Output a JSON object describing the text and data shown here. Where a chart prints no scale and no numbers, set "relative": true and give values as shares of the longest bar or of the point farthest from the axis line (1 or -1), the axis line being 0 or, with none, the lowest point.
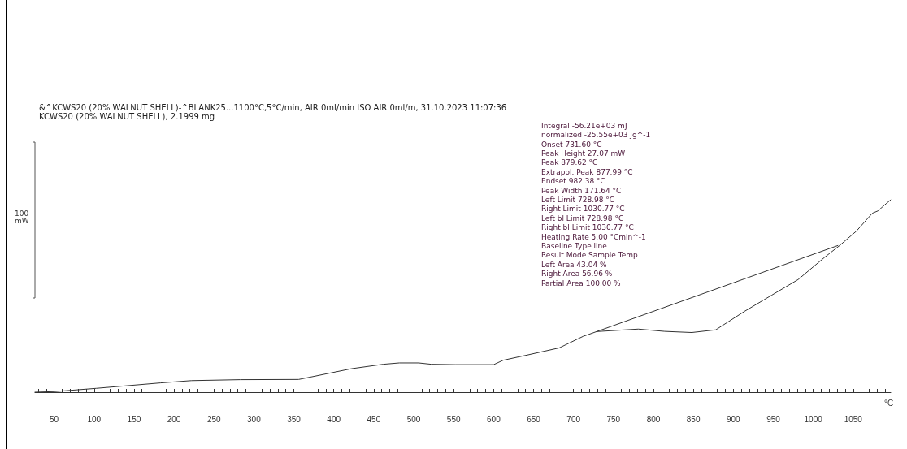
{
  "chart_data": {
    "type": "line",
    "relative": true,
    "title": "&^KCWS20 (20% WALNUT SHELL)-^BLANK25...1100°C,5°C/min, AIR 0ml/min ISO AIR 0ml/m, 31.10.2023 11:07:36",
    "subtitle": "KCWS20 (20% WALNUT SHELL), 2.1999 mg",
    "xlabel": "°C",
    "xlim": [
      26,
      1097
    ],
    "xticks": [
      {
        "value": 30,
        "label": null
      },
      {
        "value": 40,
        "label": null
      },
      50,
      {
        "value": 60,
        "label": null
      },
      {
        "value": 70,
        "label": null
      },
      {
        "value": 80,
        "label": null
      },
      {
        "value": 90,
        "label": null
      },
      100,
      {
        "value": 110,
        "label": null
      },
      {
        "value": 120,
        "label": null
      },
      {
        "value": 130,
        "label": null
      },
      {
        "value": 140,
        "label": null
      },
      150,
      {
        "value": 160,
        "label": null
      },
      {
        "value": 170,
        "label": null
      },
      {
        "value": 180,
        "label": null
      },
      {
        "value": 190,
        "label": null
      },
      200,
      {
        "value": 210,
        "label": null
      },
      {
        "value": 220,
        "label": null
      },
      {
        "value": 230,
        "label": null
      },
      {
        "value": 240,
        "label": null
      },
      250,
      {
        "value": 260,
        "label": null
      },
      {
        "value": 270,
        "label": null
      },
      {
        "value": 280,
        "label": null
      },
      {
        "value": 290,
        "label": null
      },
      300,
      {
        "value": 310,
        "label": null
      },
      {
        "value": 320,
        "label": null
      },
      {
        "value": 330,
        "label": null
      },
      {
        "value": 340,
        "label": null
      },
      350,
      {
        "value": 360,
        "label": null
      },
      {
        "value": 370,
        "label": null
      },
      {
        "value": 380,
        "label": null
      },
      {
        "value": 390,
        "label": null
      },
      400,
      {
        "value": 410,
        "label": null
      },
      {
        "value": 420,
        "label": null
      },
      {
        "value": 430,
        "label": null
      },
      {
        "value": 440,
        "label": null
      },
      450,
      {
        "value": 460,
        "label": null
      },
      {
        "value": 470,
        "label": null
      },
      {
        "value": 480,
        "label": null
      },
      {
        "value": 490,
        "label": null
      },
      500,
      {
        "value": 510,
        "label": null
      },
      {
        "value": 520,
        "label": null
      },
      {
        "value": 530,
        "label": null
      },
      {
        "value": 540,
        "label": null
      },
      550,
      {
        "value": 560,
        "label": null
      },
      {
        "value": 570,
        "label": null
      },
      {
        "value": 580,
        "label": null
      },
      {
        "value": 590,
        "label": null
      },
      600,
      {
        "value": 610,
        "label": null
      },
      {
        "value": 620,
        "label": null
      },
      {
        "value": 630,
        "label": null
      },
      {
        "value": 640,
        "label": null
      },
      650,
      {
        "value": 660,
        "label": null
      },
      {
        "value": 670,
        "label": null
      },
      {
        "value": 680,
        "label": null
      },
      {
        "value": 690,
        "label": null
      },
      700,
      {
        "value": 710,
        "label": null
      },
      {
        "value": 720,
        "label": null
      },
      {
        "value": 730,
        "label": null
      },
      {
        "value": 740,
        "label": null
      },
      750,
      {
        "value": 760,
        "label": null
      },
      {
        "value": 770,
        "label": null
      },
      {
        "value": 780,
        "label": null
      },
      {
        "value": 790,
        "label": null
      },
      800,
      {
        "value": 810,
        "label": null
      },
      {
        "value": 820,
        "label": null
      },
      {
        "value": 830,
        "label": null
      },
      {
        "value": 840,
        "label": null
      },
      850,
      {
        "value": 860,
        "label": null
      },
      {
        "value": 870,
        "label": null
      },
      {
        "value": 880,
        "label": null
      },
      {
        "value": 890,
        "label": null
      },
      900,
      {
        "value": 910,
        "label": null
      },
      {
        "value": 920,
        "label": null
      },
      {
        "value": 930,
        "label": null
      },
      {
        "value": 940,
        "label": null
      },
      950,
      {
        "value": 960,
        "label": null
      },
      {
        "value": 970,
        "label": null
      },
      {
        "value": 980,
        "label": null
      },
      {
        "value": 990,
        "label": null
      },
      1000,
      {
        "value": 1010,
        "label": null
      },
      {
        "value": 1020,
        "label": null
      },
      {
        "value": 1030,
        "label": null
      },
      {
        "value": 1040,
        "label": null
      },
      1050,
      {
        "value": 1060,
        "label": null
      },
      {
        "value": 1070,
        "label": null
      },
      {
        "value": 1080,
        "label": null
      },
      {
        "value": 1090,
        "label": null
      }
    ],
    "tick_labels": "x",
    "grid": false,
    "marker": "none",
    "line_style": "solid",
    "series": [
      {
        "color": "#333333",
        "x": [
          26,
          50,
          103,
          183,
          222,
          283,
          356,
          382,
          422,
          462,
          482,
          506,
          522,
          552,
          600,
          612,
          642,
          682,
          712,
          729,
          781,
          814,
          848,
          878,
          914,
          948,
          981,
          1014,
          1033,
          1054,
          1074,
          1081,
          1091,
          1096,
          1097
        ],
        "values": [
          0,
          0.003,
          0.02,
          0.048,
          0.06,
          0.065,
          0.066,
          0.088,
          0.122,
          0.145,
          0.152,
          0.152,
          0.145,
          0.143,
          0.143,
          0.166,
          0.193,
          0.23,
          0.29,
          0.315,
          0.328,
          0.316,
          0.31,
          0.324,
          0.42,
          0.504,
          0.585,
          0.7,
          0.762,
          0.837,
          0.93,
          0.942,
          0.979,
          0.996,
          1
        ]
      },
      {
        "color": "#333333",
        "x": [
          728.98,
          1030.77
        ],
        "values": [
          0.315,
          0.762
        ]
      }
    ],
    "annotations": [
      "100\nmW",
      "Integral -56.21e+03 mJ",
      "normalized -25.55e+03 Jg^-1",
      "Onset 731.60 °C",
      "Peak Height 27.07 mW",
      "Peak 879.62 °C",
      "Extrapol. Peak 877.99 °C",
      "Endset 982.38 °C",
      "Peak Width 171.64 °C",
      "Left Limit 728.98 °C",
      "Right Limit 1030.77 °C",
      "Left bl Limit 728.98 °C",
      "Right bl Limit 1030.77 °C",
      "Heating Rate 5.00 °Cmin^-1",
      "Baseline Type line",
      "Result Mode Sample Temp",
      "Left Area 43.04 %",
      "Right Area 56.96 %",
      "Partial Area 100.00 %"
    ]
  }
}
